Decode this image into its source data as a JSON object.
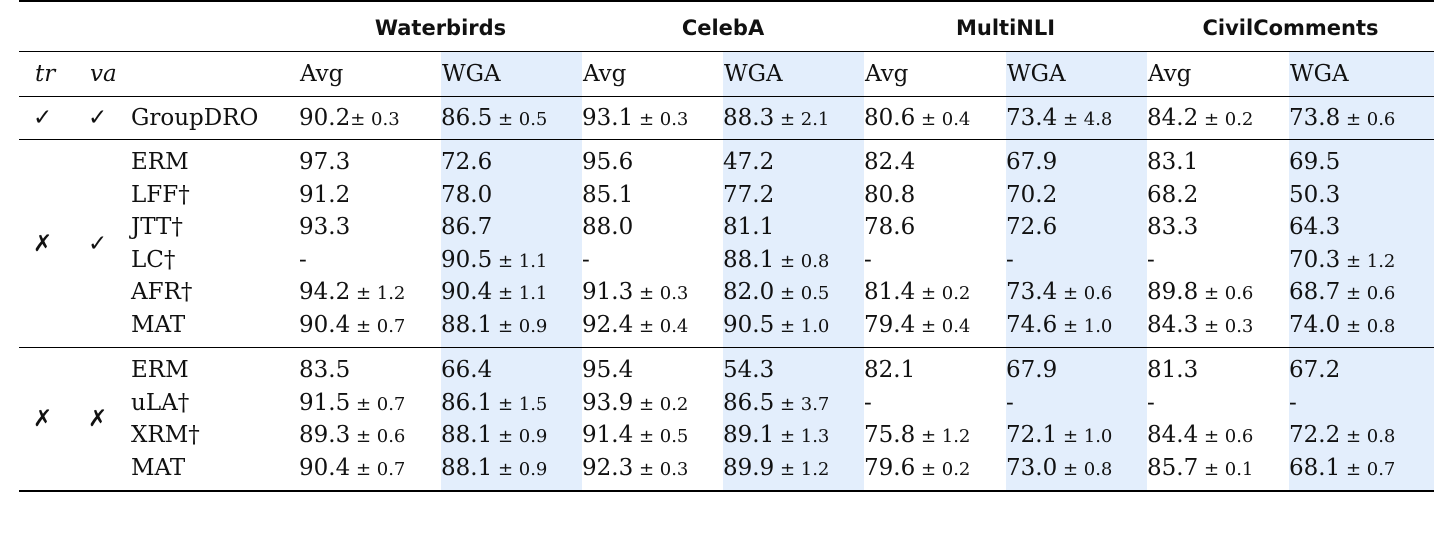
{
  "datasets": [
    "Waterbirds",
    "CelebA",
    "MultiNLI",
    "CivilComments"
  ],
  "columns": {
    "tr": "tr",
    "va": "va",
    "avg": "Avg",
    "wga": "WGA"
  },
  "groups": [
    {
      "tr": "✓",
      "va": "✓",
      "rows": [
        {
          "method": "GroupDRO",
          "cells": [
            [
              "90.2",
              "± 0.3"
            ],
            [
              "86.5",
              " ± 0.5"
            ],
            [
              "93.1",
              " ± 0.3"
            ],
            [
              "88.3",
              " ± 2.1"
            ],
            [
              "80.6",
              " ± 0.4"
            ],
            [
              "73.4",
              " ± 4.8"
            ],
            [
              "84.2",
              " ± 0.2"
            ],
            [
              "73.8",
              " ± 0.6"
            ]
          ]
        }
      ]
    },
    {
      "tr": "✗",
      "va": "✓",
      "rows": [
        {
          "method": "ERM",
          "cells": [
            [
              "97.3",
              ""
            ],
            [
              "72.6",
              ""
            ],
            [
              "95.6",
              ""
            ],
            [
              "47.2",
              ""
            ],
            [
              "82.4",
              ""
            ],
            [
              "67.9",
              ""
            ],
            [
              "83.1",
              ""
            ],
            [
              "69.5",
              ""
            ]
          ]
        },
        {
          "method": "LFF†",
          "cells": [
            [
              "91.2",
              ""
            ],
            [
              "78.0",
              ""
            ],
            [
              "85.1",
              ""
            ],
            [
              "77.2",
              ""
            ],
            [
              "80.8",
              ""
            ],
            [
              "70.2",
              ""
            ],
            [
              "68.2",
              ""
            ],
            [
              "50.3",
              ""
            ]
          ]
        },
        {
          "method": "JTT†",
          "cells": [
            [
              "93.3",
              ""
            ],
            [
              "86.7",
              ""
            ],
            [
              "88.0",
              ""
            ],
            [
              "81.1",
              ""
            ],
            [
              "78.6",
              ""
            ],
            [
              "72.6",
              ""
            ],
            [
              "83.3",
              ""
            ],
            [
              "64.3",
              ""
            ]
          ]
        },
        {
          "method": "LC†",
          "cells": [
            [
              "-",
              ""
            ],
            [
              "90.5",
              " ± 1.1"
            ],
            [
              "-",
              ""
            ],
            [
              "88.1",
              " ± 0.8"
            ],
            [
              "-",
              ""
            ],
            [
              "-",
              ""
            ],
            [
              "-",
              ""
            ],
            [
              "70.3",
              " ± 1.2"
            ]
          ]
        },
        {
          "method": "AFR†",
          "cells": [
            [
              "94.2",
              " ± 1.2"
            ],
            [
              "90.4",
              " ± 1.1"
            ],
            [
              "91.3",
              " ± 0.3"
            ],
            [
              "82.0",
              " ± 0.5"
            ],
            [
              "81.4",
              " ± 0.2"
            ],
            [
              "73.4",
              " ± 0.6"
            ],
            [
              "89.8",
              " ± 0.6"
            ],
            [
              "68.7",
              " ± 0.6"
            ]
          ]
        },
        {
          "method": "MAT",
          "cells": [
            [
              "90.4",
              " ± 0.7"
            ],
            [
              "88.1",
              " ± 0.9"
            ],
            [
              "92.4",
              " ± 0.4"
            ],
            [
              "90.5",
              " ± 1.0"
            ],
            [
              "79.4",
              " ± 0.4"
            ],
            [
              "74.6",
              " ± 1.0"
            ],
            [
              "84.3",
              " ± 0.3"
            ],
            [
              "74.0",
              " ± 0.8"
            ]
          ]
        }
      ]
    },
    {
      "tr": "✗",
      "va": "✗",
      "rows": [
        {
          "method": "ERM",
          "cells": [
            [
              "83.5",
              ""
            ],
            [
              "66.4",
              ""
            ],
            [
              "95.4",
              ""
            ],
            [
              "54.3",
              ""
            ],
            [
              "82.1",
              ""
            ],
            [
              "67.9",
              ""
            ],
            [
              "81.3",
              ""
            ],
            [
              "67.2",
              ""
            ]
          ]
        },
        {
          "method": "uLA†",
          "cells": [
            [
              "91.5",
              " ± 0.7"
            ],
            [
              "86.1",
              " ± 1.5"
            ],
            [
              "93.9",
              " ± 0.2"
            ],
            [
              "86.5",
              " ± 3.7"
            ],
            [
              "-",
              ""
            ],
            [
              "-",
              ""
            ],
            [
              "-",
              ""
            ],
            [
              "-",
              ""
            ]
          ]
        },
        {
          "method": "XRM†",
          "cells": [
            [
              "89.3",
              " ± 0.6"
            ],
            [
              "88.1",
              " ± 0.9"
            ],
            [
              "91.4",
              " ± 0.5"
            ],
            [
              "89.1",
              " ± 1.3"
            ],
            [
              "75.8",
              " ± 1.2"
            ],
            [
              "72.1",
              " ± 1.0"
            ],
            [
              "84.4",
              " ± 0.6"
            ],
            [
              "72.2",
              " ± 0.8"
            ]
          ]
        },
        {
          "method": "MAT",
          "cells": [
            [
              "90.4",
              " ± 0.7"
            ],
            [
              "88.1",
              " ± 0.9"
            ],
            [
              "92.3",
              " ± 0.3"
            ],
            [
              "89.9",
              " ± 1.2"
            ],
            [
              "79.6",
              " ± 0.2"
            ],
            [
              "73.0",
              " ± 0.8"
            ],
            [
              "85.7",
              " ± 0.1"
            ],
            [
              "68.1",
              " ± 0.7"
            ]
          ]
        }
      ]
    }
  ],
  "colors": {
    "wga_background": "#e3eefc",
    "rule": "#000000"
  }
}
